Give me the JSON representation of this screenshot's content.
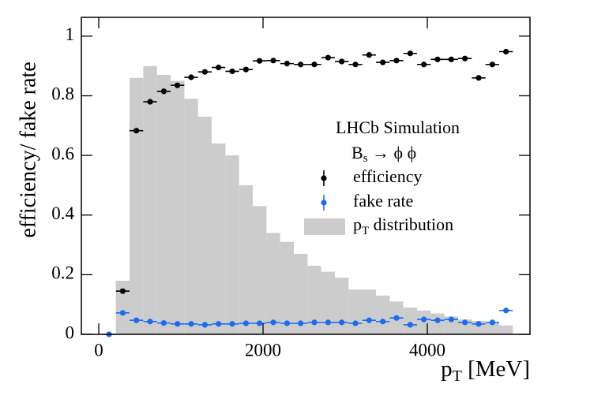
{
  "chart_data": {
    "type": "errorbar",
    "y_label": "efficiency/ fake rate",
    "x_label": {
      "text": "p",
      "sub": "T",
      "rest": " [MeV]"
    },
    "annotation": "LHCb Simulation",
    "decay": {
      "text": "B",
      "sub": "s",
      "rest": " → ϕ ϕ"
    },
    "xlim": [
      -212,
      5250
    ],
    "ylim": [
      0,
      1.063
    ],
    "xticks": [
      0,
      2000,
      4000
    ],
    "yticks": [
      0,
      0.2,
      0.4,
      0.6,
      0.8,
      1
    ],
    "histogram": {
      "type": "histogram",
      "name": {
        "text": "p",
        "sub": "T",
        "rest": " distribution"
      },
      "color": "#cccccc",
      "bins": [
        208,
        375,
        542,
        708,
        875,
        1042,
        1208,
        1375,
        1542,
        1708,
        1875,
        2042,
        2208,
        2375,
        2542,
        2708,
        2875,
        3042,
        3208,
        3375,
        3542,
        3708,
        3875,
        4042,
        4208,
        4375,
        4542,
        4708,
        4875,
        5042
      ],
      "counts": [
        0.18,
        0.86,
        0.9,
        0.87,
        0.85,
        0.79,
        0.73,
        0.64,
        0.6,
        0.5,
        0.43,
        0.34,
        0.31,
        0.27,
        0.23,
        0.21,
        0.19,
        0.15,
        0.15,
        0.13,
        0.11,
        0.09,
        0.08,
        0.07,
        0.06,
        0.05,
        0.045,
        0.04,
        0.03
      ]
    },
    "series": [
      {
        "name": "efficiency",
        "color": "#000000",
        "xerr": 83,
        "x": [
          292,
          458,
          625,
          792,
          958,
          1125,
          1292,
          1458,
          1625,
          1792,
          1958,
          2125,
          2292,
          2458,
          2625,
          2792,
          2958,
          3125,
          3292,
          3458,
          3625,
          3792,
          3958,
          4125,
          4292,
          4458,
          4625,
          4792,
          4958
        ],
        "values": [
          0.145,
          0.683,
          0.78,
          0.815,
          0.835,
          0.862,
          0.88,
          0.895,
          0.882,
          0.888,
          0.917,
          0.918,
          0.908,
          0.905,
          0.905,
          0.928,
          0.915,
          0.905,
          0.937,
          0.912,
          0.918,
          0.942,
          0.905,
          0.922,
          0.922,
          0.925,
          0.86,
          0.905,
          0.948
        ]
      },
      {
        "name": "fake rate",
        "color": "#1a6cf0",
        "xerr": 83,
        "x": [
          125,
          292,
          458,
          625,
          792,
          958,
          1125,
          1292,
          1458,
          1625,
          1792,
          1958,
          2125,
          2292,
          2458,
          2625,
          2792,
          2958,
          3125,
          3292,
          3458,
          3625,
          3792,
          3958,
          4125,
          4292,
          4458,
          4625,
          4792,
          4958
        ],
        "values": [
          0,
          0.072,
          0.047,
          0.043,
          0.038,
          0.035,
          0.035,
          0.032,
          0.035,
          0.035,
          0.037,
          0.037,
          0.04,
          0.037,
          0.037,
          0.04,
          0.04,
          0.04,
          0.037,
          0.047,
          0.043,
          0.055,
          0.032,
          0.05,
          0.047,
          0.05,
          0.04,
          0.035,
          0.04,
          0.08
        ]
      }
    ]
  }
}
